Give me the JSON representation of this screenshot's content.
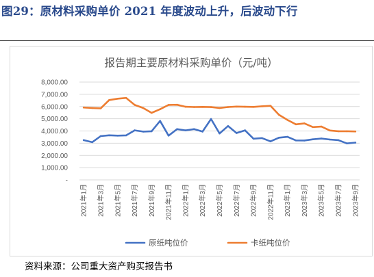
{
  "report_title": "图29：原材料采购单价 2021 年度波动上升，后波动下行",
  "source_note": "资料来源：公司重大资产购买报告书",
  "colors": {
    "title": "#2a4a8c",
    "series_blue": "#4472c4",
    "series_orange": "#ed7d31",
    "grid": "#d9d9d9",
    "axis_text": "#595959"
  },
  "chart_data": {
    "type": "line",
    "title": "报告期主要原材料采购单价（元/吨）",
    "xlabel": "",
    "ylabel": "",
    "ylim": [
      0,
      8000
    ],
    "ytick_values": [
      0,
      1000,
      2000,
      3000,
      4000,
      5000,
      6000,
      7000,
      8000
    ],
    "ytick_labels": [
      "-",
      "1,000.00",
      "2,000.00",
      "3,000.00",
      "4,000.00",
      "5,000.00",
      "6,000.00",
      "7,000.00",
      "8,000.00"
    ],
    "grid": true,
    "legend_position": "bottom",
    "x_tick_labels": [
      "2021年1月",
      "2021年3月",
      "2021年5月",
      "2021年7月",
      "2021年9月",
      "2021年11月",
      "2022年1月",
      "2022年3月",
      "2022年5月",
      "2022年7月",
      "2022年9月",
      "2022年11月",
      "2023年1月",
      "2023年3月",
      "2023年5月",
      "2023年7月",
      "2023年9月"
    ],
    "x": [
      "2021年1月",
      "2021年2月",
      "2021年3月",
      "2021年4月",
      "2021年5月",
      "2021年6月",
      "2021年7月",
      "2021年8月",
      "2021年9月",
      "2021年10月",
      "2021年11月",
      "2021年12月",
      "2022年1月",
      "2022年2月",
      "2022年3月",
      "2022年4月",
      "2022年5月",
      "2022年6月",
      "2022年7月",
      "2022年8月",
      "2022年9月",
      "2022年10月",
      "2022年11月",
      "2022年12月",
      "2023年1月",
      "2023年2月",
      "2023年3月",
      "2023年4月",
      "2023年5月",
      "2023年6月",
      "2023年7月",
      "2023年8月",
      "2023年9月"
    ],
    "series": [
      {
        "name": "原纸吨位价",
        "color": "#4472c4",
        "values": [
          3250,
          3080,
          3580,
          3650,
          3620,
          3640,
          4050,
          3950,
          3980,
          4820,
          3620,
          4150,
          4050,
          4150,
          3950,
          4980,
          3800,
          4400,
          3830,
          4050,
          3370,
          3420,
          3150,
          3450,
          3520,
          3230,
          3220,
          3320,
          3380,
          3300,
          3250,
          2980,
          3050
        ]
      },
      {
        "name": "卡纸吨位价",
        "color": "#ed7d31",
        "values": [
          5920,
          5880,
          5850,
          6530,
          6640,
          6700,
          6130,
          5880,
          5480,
          5780,
          6130,
          6140,
          5980,
          5960,
          5970,
          5950,
          5880,
          5960,
          6000,
          5980,
          5970,
          6020,
          6060,
          5320,
          4900,
          4540,
          4620,
          4320,
          4360,
          4040,
          3980,
          3980,
          3960
        ]
      }
    ]
  }
}
